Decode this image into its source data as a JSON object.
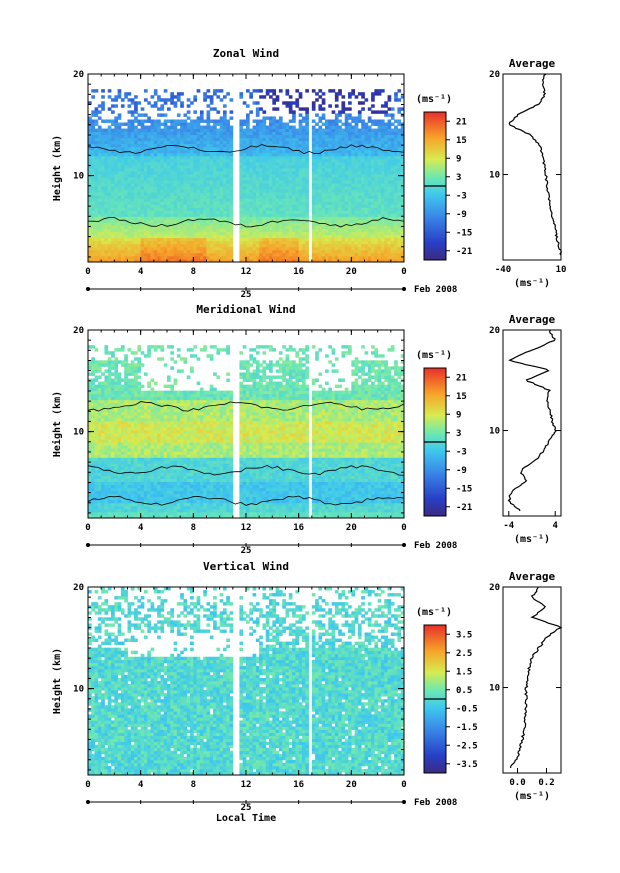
{
  "figure": {
    "panels": [
      {
        "id": "zonal",
        "title": "Zonal Wind",
        "ylabel": "Height (km)",
        "colorbar": {
          "unit": "(ms⁻¹)",
          "ticks": [
            "21",
            "15",
            "9",
            "3",
            "-3",
            "-9",
            "-15",
            "-21"
          ]
        },
        "profile": {
          "title": "Average",
          "xlabel": "(ms⁻¹)",
          "xticks": [
            "-40",
            "10"
          ],
          "yticks": [
            "20",
            "10"
          ]
        }
      },
      {
        "id": "meridional",
        "title": "Meridional Wind",
        "ylabel": "Height (km)",
        "colorbar": {
          "unit": "(ms⁻¹)",
          "ticks": [
            "21",
            "15",
            "9",
            "3",
            "-3",
            "-9",
            "-15",
            "-21"
          ]
        },
        "profile": {
          "title": "Average",
          "xlabel": "(ms⁻¹)",
          "xticks": [
            "-4",
            "4"
          ],
          "yticks": [
            "20",
            "10"
          ]
        }
      },
      {
        "id": "vertical",
        "title": "Vertical Wind",
        "ylabel": "Height (km)",
        "colorbar": {
          "unit": "(ms⁻¹)",
          "ticks": [
            "3.5",
            "2.5",
            "1.5",
            "0.5",
            "-0.5",
            "-1.5",
            "-2.5",
            "-3.5"
          ]
        },
        "profile": {
          "title": "Average",
          "xlabel": "(ms⁻¹)",
          "xticks": [
            "0.0",
            "0.2"
          ],
          "yticks": [
            "20",
            "10"
          ]
        }
      }
    ],
    "xticks": [
      "0",
      "4",
      "8",
      "12",
      "16",
      "20",
      "0"
    ],
    "yticks": [
      "20",
      "10"
    ],
    "date_day": "25",
    "date_label": "Feb 2008",
    "xlabel_bottom": "Local Time"
  },
  "chart_data": [
    {
      "type": "heatmap",
      "title": "Zonal Wind",
      "ylabel": "Height (km)",
      "x_range_local_time_h": [
        0,
        24
      ],
      "y_range_km": [
        1.5,
        20
      ],
      "color_range_ms": [
        -24,
        24
      ],
      "colormap": "jet",
      "gaps_local_time_h": [
        [
          11.1,
          11.4
        ],
        [
          16.7,
          17.0
        ]
      ],
      "features": "easterly (blue/purple) above ~11 km, strongest near 16-18 km around 16-20 h; westerly (yellow/orange) below ~4 km",
      "profile_mean": {
        "height_km": [
          2,
          4,
          6,
          8,
          10,
          12,
          13,
          14,
          15,
          16,
          17,
          18,
          19,
          20
        ],
        "value_ms": [
          10,
          6,
          2,
          -1,
          -3,
          -6,
          -9,
          -17,
          -36,
          -26,
          -9,
          -4,
          -6,
          -4
        ],
        "xlim": [
          -40,
          10
        ]
      }
    },
    {
      "type": "heatmap",
      "title": "Meridional Wind",
      "ylabel": "Height (km)",
      "x_range_local_time_h": [
        0,
        24
      ],
      "y_range_km": [
        1.5,
        20
      ],
      "color_range_ms": [
        -24,
        24
      ],
      "colormap": "jet",
      "gaps_local_time_h": [
        [
          11.1,
          11.4
        ],
        [
          16.7,
          17.0
        ]
      ],
      "features": "weak southerly (yellow-green) 8-14 km; northerly (blue) layers 2-6 km",
      "profile_mean": {
        "height_km": [
          2,
          3,
          4,
          5,
          6,
          7,
          8,
          9,
          10,
          11,
          12,
          13,
          14,
          15,
          16,
          17,
          18,
          19,
          20
        ],
        "value_ms": [
          -2,
          -4,
          -3.5,
          -1,
          -2,
          0.5,
          2,
          3,
          4,
          3.5,
          3,
          2.5,
          3,
          -1,
          3,
          -4,
          0,
          4,
          3
        ],
        "xlim": [
          -5,
          5
        ]
      }
    },
    {
      "type": "heatmap",
      "title": "Vertical Wind",
      "ylabel": "Height (km)",
      "x_range_local_time_h": [
        0,
        24
      ],
      "y_range_km": [
        1.5,
        20
      ],
      "color_range_ms": [
        -4,
        4
      ],
      "colormap": "jet",
      "gaps_local_time_h": [
        [
          11.1,
          11.4
        ],
        [
          16.7,
          17.0
        ]
      ],
      "features": "near-zero values (cyan) throughout; sparse coverage 14-20 km",
      "profile_mean": {
        "height_km": [
          2,
          3,
          4,
          6,
          8,
          10,
          12,
          13,
          14,
          15,
          16,
          17,
          18,
          19,
          20
        ],
        "value_ms": [
          -0.05,
          0.0,
          0.02,
          0.05,
          0.06,
          0.06,
          0.08,
          0.1,
          0.15,
          0.2,
          0.3,
          0.1,
          0.2,
          0.1,
          0.15
        ],
        "xlim": [
          -0.1,
          0.3
        ]
      }
    }
  ]
}
